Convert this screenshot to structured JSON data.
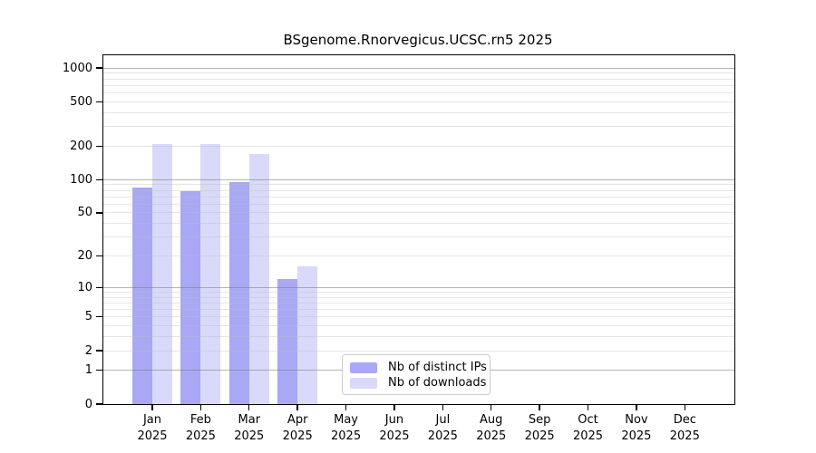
{
  "chart_data": {
    "type": "bar",
    "title": "BSgenome.Rnorvegicus.UCSC.rn5 2025",
    "categories": [
      "Jan",
      "Feb",
      "Mar",
      "Apr",
      "May",
      "Jun",
      "Jul",
      "Aug",
      "Sep",
      "Oct",
      "Nov",
      "Dec"
    ],
    "year_label": "2025",
    "series": [
      {
        "name": "Nb of distinct IPs",
        "color": "#a8a8f5",
        "values": [
          85,
          78,
          95,
          12,
          null,
          null,
          null,
          null,
          null,
          null,
          null,
          null
        ]
      },
      {
        "name": "Nb of downloads",
        "color": "#d9d9f9",
        "values": [
          210,
          210,
          170,
          16,
          null,
          null,
          null,
          null,
          null,
          null,
          null,
          null
        ]
      }
    ],
    "yscale": "log10(1+v)",
    "ylim": [
      0,
      1300
    ],
    "yticks": [
      0,
      1,
      2,
      5,
      10,
      20,
      50,
      100,
      200,
      500,
      1000
    ],
    "grid_major_values": [
      1,
      10,
      100,
      1000
    ],
    "grid_minor_values": [
      2,
      3,
      4,
      5,
      6,
      7,
      8,
      9,
      20,
      30,
      40,
      50,
      60,
      70,
      80,
      90,
      200,
      300,
      400,
      500,
      600,
      700,
      800,
      900
    ],
    "grid": "horizontal",
    "legend_position": "bottom-center-inside",
    "axis_color": "#000000",
    "background_color": "#ffffff"
  }
}
